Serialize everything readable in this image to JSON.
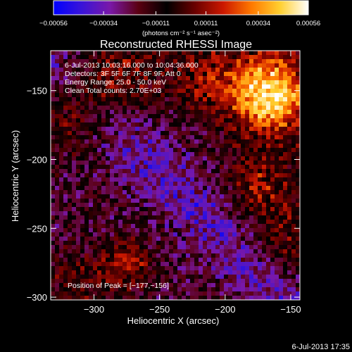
{
  "chart_data": {
    "type": "heatmap",
    "title": "Reconstructed RHESSI Image",
    "xlabel": "Heliocentric X (arcsec)",
    "ylabel": "Heliocentric Y (arcsec)",
    "xlim": [
      -333,
      -143
    ],
    "ylim": [
      -302,
      -121
    ],
    "x_ticks": [
      {
        "value": -300,
        "label": "−300"
      },
      {
        "value": -250,
        "label": "−250"
      },
      {
        "value": -200,
        "label": "−200"
      },
      {
        "value": -150,
        "label": "−150"
      }
    ],
    "y_ticks": [
      {
        "value": -150,
        "label": "−150"
      },
      {
        "value": -200,
        "label": "−200"
      },
      {
        "value": -250,
        "label": "−250"
      },
      {
        "value": -300,
        "label": "−300"
      }
    ],
    "colorbar": {
      "range": [
        -0.00056,
        0.00056
      ],
      "ticks": [
        {
          "value": -0.00056,
          "label": "−0.00056"
        },
        {
          "value": -0.00034,
          "label": "−0.00034"
        },
        {
          "value": -0.00011,
          "label": "−0.00011"
        },
        {
          "value": 0.00011,
          "label": "0.00011"
        },
        {
          "value": 0.00034,
          "label": "0.00034"
        },
        {
          "value": 0.00056,
          "label": "0.00056"
        }
      ],
      "units_label": "(photons cm⁻² s⁻¹ asec⁻²)",
      "colormap": [
        "#0000ff",
        "#3a14d8",
        "#7a18a8",
        "#5a0010",
        "#000000",
        "#6a0000",
        "#cc1800",
        "#ff7a00",
        "#ffd030",
        "#ffffff"
      ]
    },
    "info_lines": [
      "6-Jul-2013 10:03:16.000 to 10:04:36.000",
      "Detectors: 3F 5F 6F 7F 8F 9F, Att 0",
      "Energy Range: 25.0 - 50.0 keV",
      "Clean     Total counts: 2.70E+03"
    ],
    "peak_label": "Position of Peak = [−177,−156]",
    "peak": {
      "x": -177,
      "y": -156
    },
    "grid": false
  },
  "timestamp": "6-Jul-2013 17:35"
}
